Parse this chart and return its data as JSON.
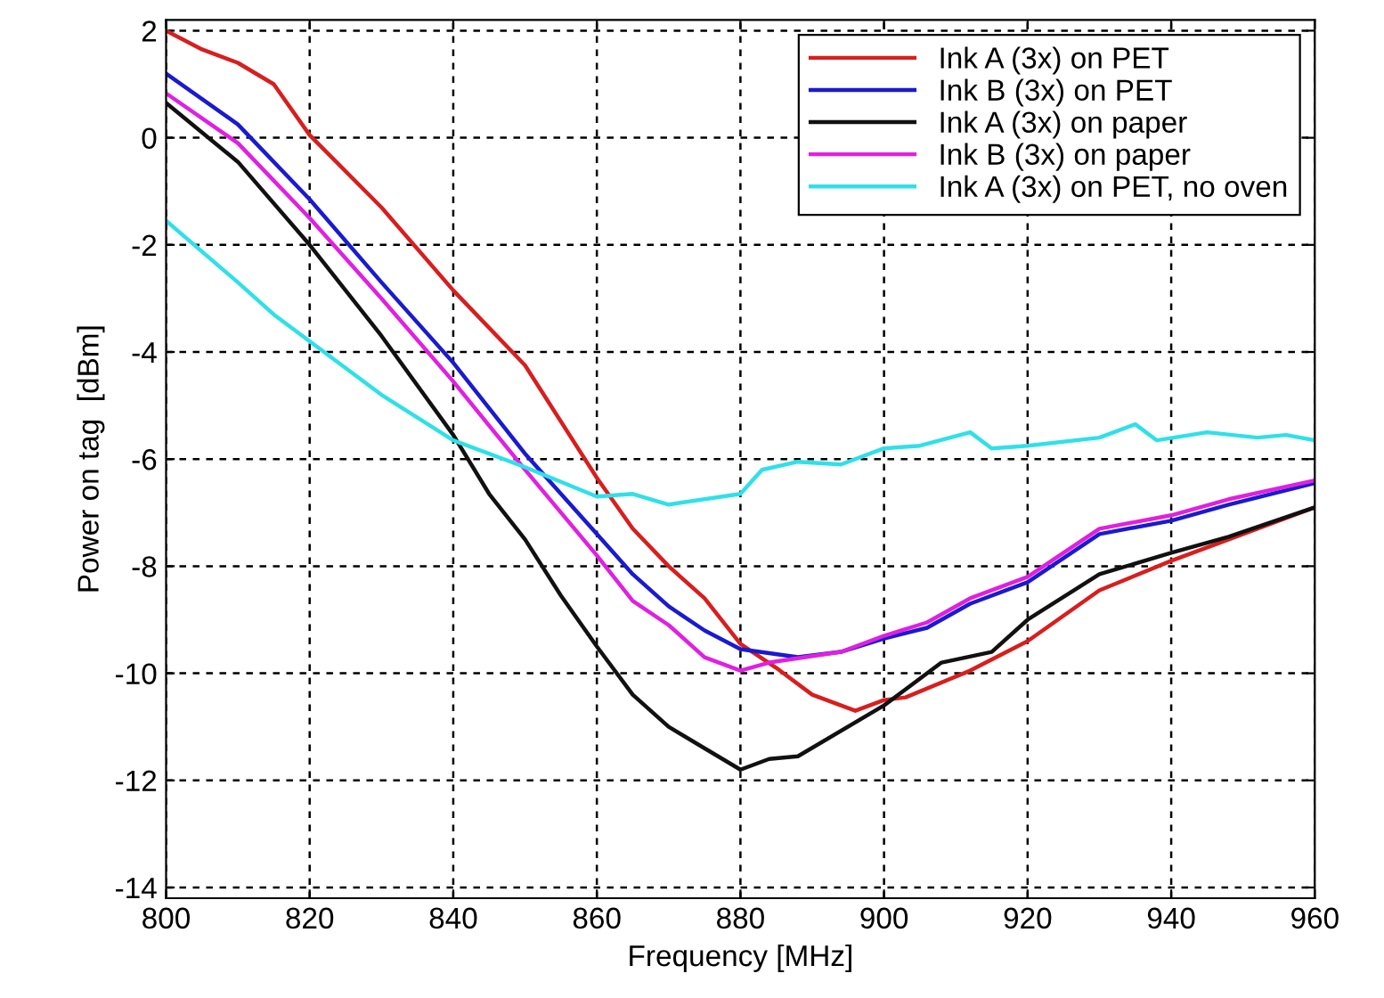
{
  "chart_data": {
    "type": "line",
    "xlabel": "Frequency [MHz]",
    "ylabel": "Power on tag  [dBm]",
    "xlim": [
      800,
      960
    ],
    "ylim": [
      -14.2,
      2.2
    ],
    "xticks": [
      800,
      820,
      840,
      860,
      880,
      900,
      920,
      940,
      960
    ],
    "yticks": [
      -14,
      -12,
      -10,
      -8,
      -6,
      -4,
      -2,
      0,
      2
    ],
    "grid": true,
    "legend": "top right",
    "line_style": "solid",
    "marker": "none",
    "series": [
      {
        "name": "Ink A (3x) on PET",
        "color": "#d81e1e",
        "x": [
          800,
          805,
          810,
          815,
          820,
          830,
          840,
          850,
          860,
          865,
          870,
          875,
          880,
          885,
          890,
          896,
          900,
          903,
          912,
          920,
          930,
          940,
          948,
          960
        ],
        "values": [
          2.0,
          1.65,
          1.4,
          1.0,
          0.05,
          -1.3,
          -2.85,
          -4.25,
          -6.35,
          -7.3,
          -8.0,
          -8.6,
          -9.45,
          -9.9,
          -10.4,
          -10.7,
          -10.5,
          -10.45,
          -9.95,
          -9.4,
          -8.45,
          -7.9,
          -7.5,
          -6.9
        ]
      },
      {
        "name": "Ink B (3x) on PET",
        "color": "#1a1ad0",
        "x": [
          800,
          810,
          820,
          830,
          840,
          850,
          860,
          865,
          870,
          875,
          880,
          888,
          894,
          900,
          906,
          912,
          920,
          930,
          940,
          948,
          960
        ],
        "values": [
          1.2,
          0.25,
          -1.15,
          -2.7,
          -4.2,
          -5.9,
          -7.4,
          -8.15,
          -8.75,
          -9.2,
          -9.55,
          -9.7,
          -9.6,
          -9.35,
          -9.15,
          -8.7,
          -8.3,
          -7.4,
          -7.15,
          -6.85,
          -6.45
        ]
      },
      {
        "name": "Ink A (3x) on paper",
        "color": "#111111",
        "x": [
          800,
          810,
          820,
          830,
          840,
          845,
          850,
          855,
          860,
          865,
          870,
          875,
          880,
          884,
          888,
          900,
          908,
          915,
          920,
          930,
          940,
          948,
          960
        ],
        "values": [
          0.65,
          -0.45,
          -2.0,
          -3.7,
          -5.55,
          -6.65,
          -7.5,
          -8.55,
          -9.5,
          -10.4,
          -11.0,
          -11.4,
          -11.8,
          -11.6,
          -11.55,
          -10.6,
          -9.8,
          -9.6,
          -9.0,
          -8.15,
          -7.75,
          -7.45,
          -6.9
        ]
      },
      {
        "name": "Ink B (3x) on paper",
        "color": "#e020e0",
        "x": [
          800,
          810,
          820,
          830,
          840,
          850,
          860,
          865,
          870,
          875,
          880,
          884,
          894,
          900,
          906,
          912,
          920,
          930,
          940,
          948,
          960
        ],
        "values": [
          0.83,
          -0.1,
          -1.5,
          -3.0,
          -4.55,
          -6.2,
          -7.8,
          -8.65,
          -9.1,
          -9.7,
          -9.95,
          -9.8,
          -9.6,
          -9.3,
          -9.05,
          -8.6,
          -8.2,
          -7.3,
          -7.05,
          -6.75,
          -6.4
        ]
      },
      {
        "name": "Ink A (3x) on PET, no oven",
        "color": "#30e0e8",
        "x": [
          800,
          810,
          815,
          820,
          825,
          830,
          840,
          850,
          860,
          865,
          870,
          880,
          883,
          888,
          894,
          900,
          905,
          912,
          915,
          920,
          930,
          935,
          938,
          945,
          952,
          956,
          960
        ],
        "values": [
          -1.55,
          -2.7,
          -3.3,
          -3.8,
          -4.3,
          -4.8,
          -5.65,
          -6.15,
          -6.7,
          -6.65,
          -6.85,
          -6.65,
          -6.2,
          -6.05,
          -6.1,
          -5.8,
          -5.75,
          -5.5,
          -5.8,
          -5.75,
          -5.6,
          -5.35,
          -5.65,
          -5.5,
          -5.6,
          -5.55,
          -5.65
        ]
      }
    ]
  }
}
